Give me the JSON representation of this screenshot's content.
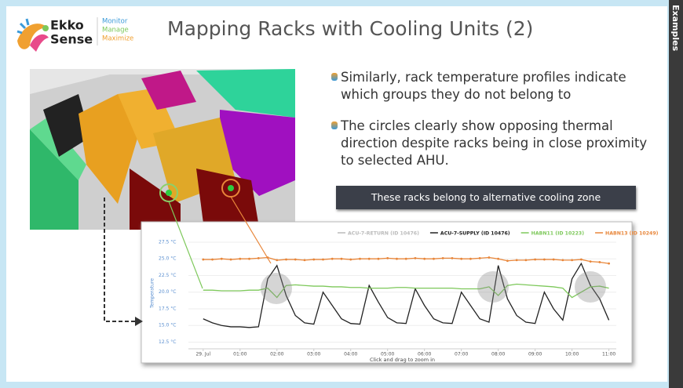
{
  "header": {
    "brand_top": "Ekko",
    "brand_bottom": "Sense",
    "tagline": [
      "Monitor",
      "Manage",
      "Maximize"
    ],
    "title": "Mapping Racks with Cooling Units (2)"
  },
  "bullets": [
    "Similarly, rack temperature profiles indicate which groups they do not belong to",
    "The circles clearly show opposing thermal direction despite racks being in close proximity to selected AHU."
  ],
  "callout": "These racks belong to alternative cooling zone",
  "sidebar": "Examples",
  "chart_data": {
    "type": "line",
    "x_label": "Click and drag to zoom in",
    "y_label": "Temperature",
    "x": [
      0,
      0.25,
      0.5,
      0.75,
      1,
      1.25,
      1.5,
      1.75,
      2,
      2.25,
      2.5,
      2.75,
      3,
      3.25,
      3.5,
      3.75,
      4,
      4.25,
      4.5,
      4.75,
      5,
      5.25,
      5.5,
      5.75,
      6,
      6.25,
      6.5,
      6.75,
      7,
      7.25,
      7.5,
      7.75,
      8,
      8.25,
      8.5,
      8.75,
      9,
      9.25,
      9.5,
      9.75,
      10,
      10.25,
      10.5,
      10.75,
      11
    ],
    "series": [
      {
        "name": "ACU-7-RETURN (ID 10476)",
        "color": "#bbbbbb",
        "visible": false
      },
      {
        "name": "ACU-7-SUPPLY (ID 10476)",
        "color": "#222222",
        "values": [
          16.0,
          15.4,
          15.0,
          14.8,
          14.8,
          14.7,
          14.8,
          22.0,
          24.0,
          19.5,
          16.5,
          15.4,
          15.2,
          20.0,
          18.0,
          16.0,
          15.3,
          15.2,
          21.0,
          18.5,
          16.2,
          15.4,
          15.3,
          20.5,
          18.0,
          16.0,
          15.4,
          15.3,
          20.0,
          18.0,
          16.0,
          15.5,
          24.0,
          19.0,
          16.5,
          15.5,
          15.3,
          20.0,
          17.5,
          15.8,
          22.0,
          24.3,
          21.0,
          19.0,
          15.8
        ]
      },
      {
        "name": "HABN11 (ID 10223)",
        "color": "#7dc85a",
        "values": [
          20.3,
          20.3,
          20.2,
          20.2,
          20.2,
          20.3,
          20.3,
          20.6,
          19.2,
          21.0,
          21.1,
          21.0,
          20.9,
          20.9,
          20.8,
          20.8,
          20.7,
          20.7,
          20.6,
          20.6,
          20.6,
          20.7,
          20.7,
          20.6,
          20.6,
          20.6,
          20.6,
          20.6,
          20.5,
          20.5,
          20.5,
          20.8,
          19.5,
          21.0,
          21.2,
          21.1,
          21.0,
          20.9,
          20.8,
          20.6,
          19.2,
          20.0,
          20.8,
          20.9,
          20.6
        ]
      },
      {
        "name": "HABN13 (ID 10249)",
        "color": "#e8863a",
        "values": [
          24.9,
          24.9,
          25.0,
          24.9,
          25.0,
          25.0,
          25.1,
          25.2,
          24.8,
          24.9,
          24.9,
          24.8,
          24.9,
          24.9,
          25.0,
          25.0,
          24.9,
          25.0,
          25.0,
          25.0,
          25.1,
          25.0,
          25.0,
          25.1,
          25.0,
          25.0,
          25.1,
          25.1,
          25.0,
          25.0,
          25.1,
          25.2,
          25.0,
          24.7,
          24.8,
          24.8,
          24.9,
          24.9,
          24.9,
          24.8,
          24.8,
          24.9,
          24.6,
          24.5,
          24.3
        ],
        "markers": true
      }
    ],
    "xlim": [
      -0.4,
      11.2
    ],
    "ylim": [
      11.5,
      28.2
    ],
    "xticks": [
      {
        "value": 0,
        "label": "29. Jul"
      },
      {
        "value": 1,
        "label": "01:00"
      },
      {
        "value": 2,
        "label": "02:00"
      },
      {
        "value": 3,
        "label": "03:00"
      },
      {
        "value": 4,
        "label": "04:00"
      },
      {
        "value": 5,
        "label": "05:00"
      },
      {
        "value": 6,
        "label": "06:00"
      },
      {
        "value": 7,
        "label": "07:00"
      },
      {
        "value": 8,
        "label": "08:00"
      },
      {
        "value": 9,
        "label": "09:00"
      },
      {
        "value": 10,
        "label": "10:00"
      },
      {
        "value": 11,
        "label": "11:00"
      }
    ],
    "yticks": [
      {
        "value": 12.5,
        "label": "12.5 °C"
      },
      {
        "value": 15,
        "label": "15.0 °C"
      },
      {
        "value": 17.5,
        "label": "17.5 °C"
      },
      {
        "value": 20,
        "label": "20.0 °C"
      },
      {
        "value": 22.5,
        "label": "22.5 °C"
      },
      {
        "value": 25,
        "label": "25.0 °C"
      },
      {
        "value": 27.5,
        "label": "27.5 °C"
      }
    ],
    "grid": true
  }
}
